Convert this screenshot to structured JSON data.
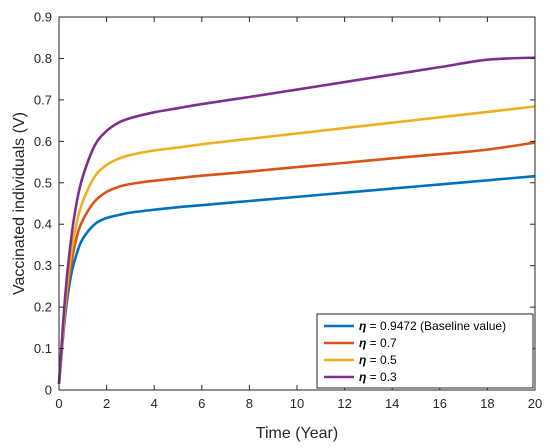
{
  "chart_data": {
    "type": "line",
    "title": "",
    "xlabel": "Time (Year)",
    "ylabel": "Vaccinated individuals (V)",
    "xlim": [
      0,
      20
    ],
    "ylim": [
      0,
      0.9
    ],
    "xticks": [
      0,
      2,
      4,
      6,
      8,
      10,
      12,
      14,
      16,
      18,
      20
    ],
    "yticks": [
      0,
      0.1,
      0.2,
      0.3,
      0.4,
      0.5,
      0.6,
      0.7,
      0.8,
      0.9
    ],
    "xtick_labels": [
      "0",
      "2",
      "4",
      "6",
      "8",
      "10",
      "12",
      "14",
      "16",
      "18",
      "20"
    ],
    "ytick_labels": [
      "0",
      "0.1",
      "0.2",
      "0.3",
      "0.4",
      "0.5",
      "0.6",
      "0.7",
      "0.8",
      "0.9"
    ],
    "grid": false,
    "legend_position": "bottom-right",
    "x": [
      0,
      0.25,
      0.5,
      0.75,
      1,
      1.5,
      2,
      2.5,
      3,
      4,
      5,
      6,
      8,
      10,
      12,
      14,
      16,
      18,
      20
    ],
    "series": [
      {
        "name": "η = 0.9472 (Baseline value)",
        "legend_prefix": "η",
        "legend_rest": " = 0.9472 (Baseline value)",
        "color": "#0072bd",
        "values": [
          0.015,
          0.175,
          0.275,
          0.33,
          0.365,
          0.4,
          0.415,
          0.422,
          0.428,
          0.435,
          0.441,
          0.446,
          0.456,
          0.466,
          0.476,
          0.486,
          0.496,
          0.506,
          0.516
        ]
      },
      {
        "name": "η = 0.7",
        "legend_prefix": "η",
        "legend_rest": " = 0.7",
        "color": "#d95319",
        "values": [
          0.015,
          0.19,
          0.3,
          0.37,
          0.41,
          0.455,
          0.478,
          0.49,
          0.497,
          0.505,
          0.511,
          0.517,
          0.527,
          0.538,
          0.548,
          0.559,
          0.569,
          0.58,
          0.597
        ]
      },
      {
        "name": "η = 0.5",
        "legend_prefix": "η",
        "legend_rest": " = 0.5",
        "color": "#edb120",
        "values": [
          0.015,
          0.2,
          0.325,
          0.405,
          0.455,
          0.515,
          0.543,
          0.558,
          0.567,
          0.578,
          0.585,
          0.593,
          0.606,
          0.619,
          0.632,
          0.645,
          0.658,
          0.671,
          0.684
        ]
      },
      {
        "name": "η = 0.3",
        "legend_prefix": "η",
        "legend_rest": " = 0.3",
        "color": "#7e2f8e",
        "values": [
          0.015,
          0.22,
          0.36,
          0.455,
          0.515,
          0.59,
          0.625,
          0.645,
          0.656,
          0.67,
          0.68,
          0.69,
          0.707,
          0.725,
          0.743,
          0.761,
          0.779,
          0.797,
          0.802
        ]
      }
    ]
  }
}
